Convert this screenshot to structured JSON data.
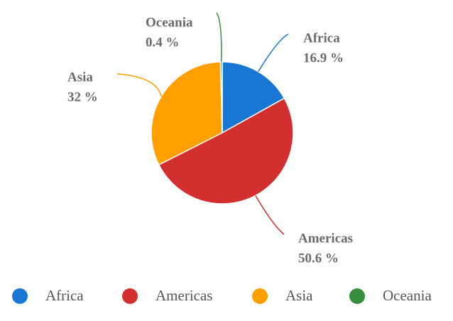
{
  "chart_data": {
    "type": "pie",
    "categories": [
      "Africa",
      "Americas",
      "Asia",
      "Oceania"
    ],
    "values": [
      16.9,
      50.6,
      32,
      0.4
    ],
    "value_labels": [
      "16.9 %",
      "50.6 %",
      "32 %",
      "0.4 %"
    ],
    "colors": [
      "#1976d2",
      "#d32f2f",
      "#ffa000",
      "#388e3c"
    ]
  }
}
